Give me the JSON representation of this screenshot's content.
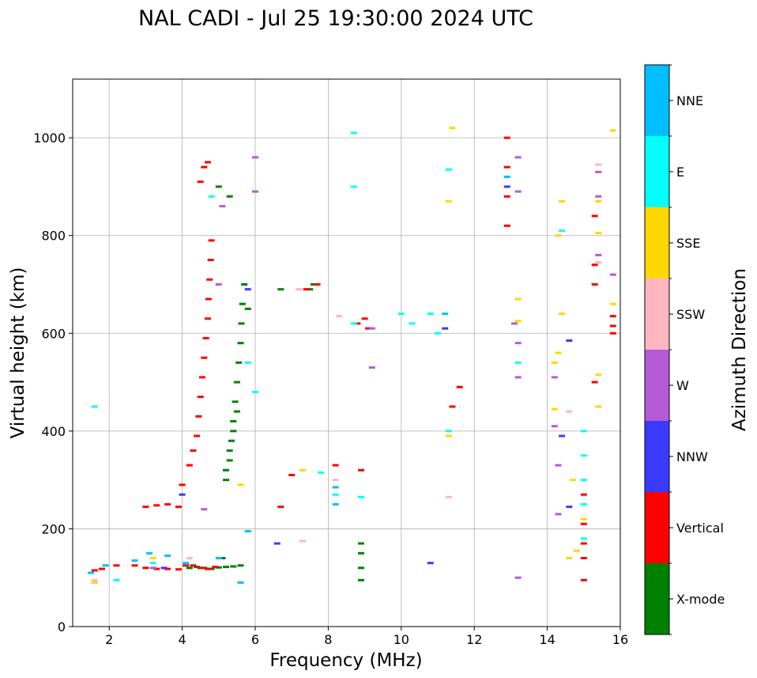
{
  "chart_data": {
    "type": "scatter",
    "title": "NAL CADI - Jul 25 19:30:00 2024 UTC",
    "xlabel": "Frequency (MHz)",
    "ylabel": "Virtual height (km)",
    "xlim": [
      1,
      16
    ],
    "ylim": [
      0,
      1120
    ],
    "xticks": [
      2,
      4,
      6,
      8,
      10,
      12,
      14,
      16
    ],
    "yticks": [
      0,
      200,
      400,
      600,
      800,
      1000
    ],
    "grid": true,
    "colorbar": {
      "title": "Azimuth Direction",
      "categories": [
        {
          "label": "X-mode",
          "color": "#008000"
        },
        {
          "label": "Vertical",
          "color": "#ff0000"
        },
        {
          "label": "NNW",
          "color": "#3a3aff"
        },
        {
          "label": "W",
          "color": "#b55ad6"
        },
        {
          "label": "SSW",
          "color": "#ffb6c1"
        },
        {
          "label": "SSE",
          "color": "#ffd700"
        },
        {
          "label": "E",
          "color": "#00ffff"
        },
        {
          "label": "NNE",
          "color": "#00bfff"
        }
      ]
    },
    "series": [
      {
        "name": "X-mode",
        "points": [
          [
            4.2,
            120
          ],
          [
            4.4,
            122
          ],
          [
            4.6,
            120
          ],
          [
            4.8,
            118
          ],
          [
            5.0,
            121
          ],
          [
            5.2,
            122
          ],
          [
            5.4,
            123
          ],
          [
            5.6,
            125
          ],
          [
            5.1,
            140
          ],
          [
            5.2,
            300
          ],
          [
            5.3,
            340
          ],
          [
            5.35,
            380
          ],
          [
            5.4,
            420
          ],
          [
            5.45,
            460
          ],
          [
            5.5,
            500
          ],
          [
            5.55,
            540
          ],
          [
            5.6,
            580
          ],
          [
            5.62,
            620
          ],
          [
            5.65,
            660
          ],
          [
            5.7,
            700
          ],
          [
            5.2,
            320
          ],
          [
            5.3,
            360
          ],
          [
            5.4,
            400
          ],
          [
            5.5,
            440
          ],
          [
            5.0,
            900
          ],
          [
            5.3,
            880
          ],
          [
            5.8,
            650
          ],
          [
            7.5,
            690
          ],
          [
            7.6,
            700
          ],
          [
            6.7,
            690
          ],
          [
            8.9,
            95
          ],
          [
            8.9,
            120
          ],
          [
            8.9,
            150
          ],
          [
            8.9,
            170
          ]
        ]
      },
      {
        "name": "Vertical",
        "points": [
          [
            1.6,
            115
          ],
          [
            1.8,
            118
          ],
          [
            2.2,
            125
          ],
          [
            2.7,
            125
          ],
          [
            3.0,
            120
          ],
          [
            3.3,
            118
          ],
          [
            3.6,
            118
          ],
          [
            3.9,
            117
          ],
          [
            4.1,
            125
          ],
          [
            4.3,
            125
          ],
          [
            4.5,
            120
          ],
          [
            4.7,
            118
          ],
          [
            4.9,
            122
          ],
          [
            3.0,
            245
          ],
          [
            3.3,
            248
          ],
          [
            3.6,
            250
          ],
          [
            3.9,
            245
          ],
          [
            4.0,
            290
          ],
          [
            4.2,
            330
          ],
          [
            4.3,
            360
          ],
          [
            4.4,
            390
          ],
          [
            4.45,
            430
          ],
          [
            4.5,
            470
          ],
          [
            4.55,
            510
          ],
          [
            4.6,
            550
          ],
          [
            4.65,
            590
          ],
          [
            4.7,
            630
          ],
          [
            4.72,
            670
          ],
          [
            4.75,
            710
          ],
          [
            4.78,
            750
          ],
          [
            4.8,
            790
          ],
          [
            4.6,
            940
          ],
          [
            4.7,
            950
          ],
          [
            4.5,
            910
          ],
          [
            6.7,
            245
          ],
          [
            7.0,
            310
          ],
          [
            7.4,
            690
          ],
          [
            7.7,
            700
          ],
          [
            8.2,
            330
          ],
          [
            8.9,
            320
          ],
          [
            8.8,
            620
          ],
          [
            9.0,
            630
          ],
          [
            9.1,
            610
          ],
          [
            11.4,
            450
          ],
          [
            11.6,
            490
          ],
          [
            12.9,
            820
          ],
          [
            12.9,
            880
          ],
          [
            12.9,
            940
          ],
          [
            12.9,
            1000
          ],
          [
            15.0,
            140
          ],
          [
            15.0,
            170
          ],
          [
            15.0,
            210
          ],
          [
            15.0,
            270
          ],
          [
            15.0,
            95
          ],
          [
            15.3,
            500
          ],
          [
            15.3,
            700
          ],
          [
            15.3,
            740
          ],
          [
            15.3,
            840
          ],
          [
            15.8,
            600
          ],
          [
            15.8,
            615
          ],
          [
            15.8,
            635
          ]
        ]
      },
      {
        "name": "NNW",
        "points": [
          [
            3.5,
            120
          ],
          [
            4.0,
            270
          ],
          [
            5.8,
            690
          ],
          [
            6.6,
            170
          ],
          [
            10.8,
            130
          ],
          [
            12.9,
            900
          ],
          [
            14.6,
            245
          ],
          [
            14.6,
            585
          ],
          [
            14.4,
            390
          ],
          [
            11.2,
            610
          ]
        ]
      },
      {
        "name": "W",
        "points": [
          [
            3.2,
            120
          ],
          [
            4.6,
            240
          ],
          [
            5.1,
            860
          ],
          [
            5.0,
            700
          ],
          [
            6.0,
            890
          ],
          [
            6.0,
            960
          ],
          [
            9.2,
            610
          ],
          [
            9.2,
            530
          ],
          [
            13.2,
            100
          ],
          [
            13.2,
            510
          ],
          [
            13.2,
            580
          ],
          [
            13.1,
            620
          ],
          [
            13.2,
            890
          ],
          [
            13.2,
            960
          ],
          [
            14.2,
            410
          ],
          [
            14.2,
            510
          ],
          [
            14.3,
            330
          ],
          [
            14.3,
            230
          ],
          [
            15.4,
            760
          ],
          [
            15.4,
            880
          ],
          [
            15.4,
            930
          ],
          [
            15.8,
            720
          ]
        ]
      },
      {
        "name": "SSW",
        "points": [
          [
            1.6,
            95
          ],
          [
            4.2,
            140
          ],
          [
            7.2,
            690
          ],
          [
            7.3,
            175
          ],
          [
            8.3,
            635
          ],
          [
            8.2,
            300
          ],
          [
            11.3,
            265
          ],
          [
            14.6,
            440
          ],
          [
            15.4,
            945
          ],
          [
            15.4,
            745
          ]
        ]
      },
      {
        "name": "SSE",
        "points": [
          [
            1.6,
            90
          ],
          [
            3.2,
            140
          ],
          [
            5.6,
            290
          ],
          [
            7.3,
            320
          ],
          [
            11.3,
            390
          ],
          [
            11.3,
            870
          ],
          [
            11.4,
            1020
          ],
          [
            13.2,
            625
          ],
          [
            13.2,
            670
          ],
          [
            14.2,
            445
          ],
          [
            14.2,
            540
          ],
          [
            14.3,
            560
          ],
          [
            14.4,
            640
          ],
          [
            14.3,
            800
          ],
          [
            14.4,
            870
          ],
          [
            14.6,
            140
          ],
          [
            14.7,
            300
          ],
          [
            14.8,
            155
          ],
          [
            15.0,
            220
          ],
          [
            15.4,
            450
          ],
          [
            15.4,
            515
          ],
          [
            15.4,
            805
          ],
          [
            15.4,
            870
          ],
          [
            15.8,
            660
          ],
          [
            15.8,
            1015
          ]
        ]
      },
      {
        "name": "E",
        "points": [
          [
            1.6,
            450
          ],
          [
            2.2,
            95
          ],
          [
            3.2,
            130
          ],
          [
            4.8,
            880
          ],
          [
            5.8,
            540
          ],
          [
            6.0,
            480
          ],
          [
            7.8,
            315
          ],
          [
            8.2,
            270
          ],
          [
            8.7,
            620
          ],
          [
            8.7,
            900
          ],
          [
            8.7,
            1010
          ],
          [
            8.9,
            265
          ],
          [
            10.0,
            640
          ],
          [
            10.3,
            620
          ],
          [
            10.8,
            640
          ],
          [
            11.0,
            600
          ],
          [
            11.3,
            400
          ],
          [
            11.3,
            935
          ],
          [
            13.2,
            540
          ],
          [
            14.4,
            810
          ],
          [
            15.0,
            180
          ],
          [
            15.0,
            250
          ],
          [
            15.0,
            300
          ],
          [
            15.0,
            350
          ],
          [
            15.0,
            400
          ]
        ]
      },
      {
        "name": "NNE",
        "points": [
          [
            1.5,
            110
          ],
          [
            1.9,
            125
          ],
          [
            2.7,
            135
          ],
          [
            3.1,
            150
          ],
          [
            3.6,
            145
          ],
          [
            4.1,
            130
          ],
          [
            5.0,
            140
          ],
          [
            5.8,
            195
          ],
          [
            5.6,
            90
          ],
          [
            8.2,
            250
          ],
          [
            8.2,
            285
          ],
          [
            11.2,
            640
          ],
          [
            12.9,
            920
          ]
        ]
      }
    ]
  }
}
